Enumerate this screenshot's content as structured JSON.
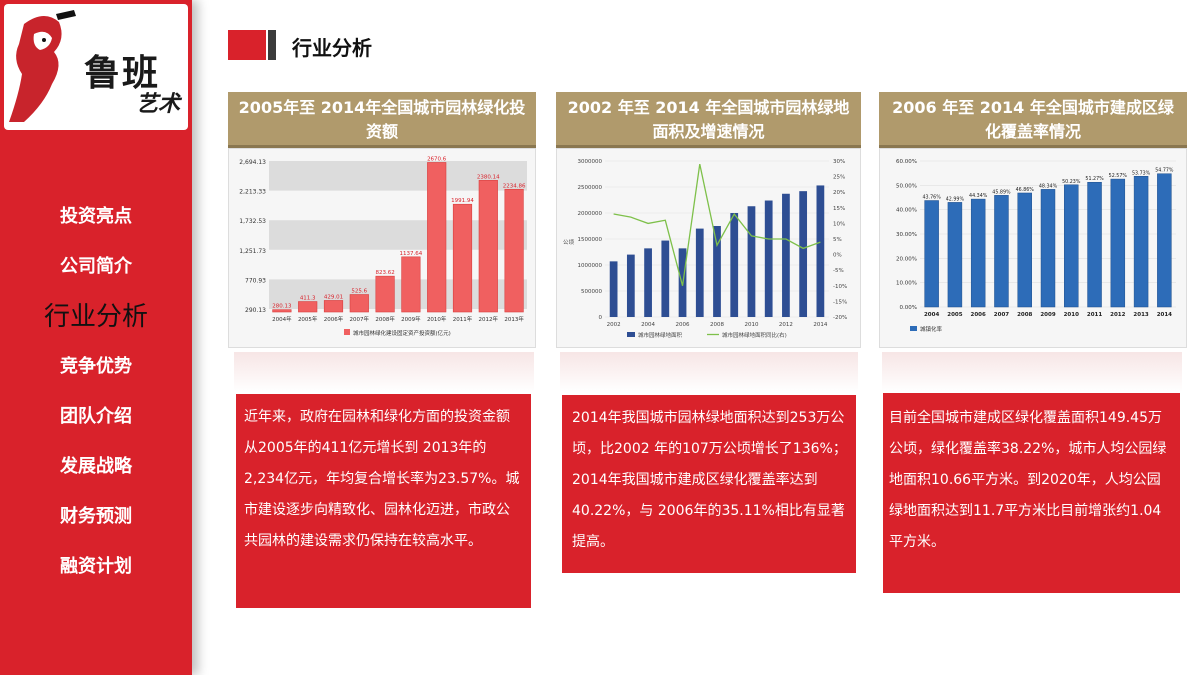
{
  "brand": {
    "logo_main": "鲁班",
    "logo_sub": "艺术"
  },
  "nav": {
    "items": [
      {
        "label": "投资亮点",
        "active": false
      },
      {
        "label": "公司简介",
        "active": false
      },
      {
        "label": "行业分析",
        "active": true
      },
      {
        "label": "竞争优势",
        "active": false
      },
      {
        "label": "团队介绍",
        "active": false
      },
      {
        "label": "发展战略",
        "active": false
      },
      {
        "label": "财务预测",
        "active": false
      },
      {
        "label": "融资计划",
        "active": false
      }
    ]
  },
  "header": {
    "title": "行业分析"
  },
  "colors": {
    "accent": "#d9222b",
    "gold": "#b09a6c",
    "dark": "#3b3b3b"
  },
  "cards": [
    {
      "title_line1": "2005年至 2014年全国城市园林绿化投",
      "title_line2": "资额",
      "description": "近年来，政府在园林和绿化方面的投资金额从2005年的411亿元增长到 2013年的2,234亿元，年均复合增长率为23.57%。城市建设逐步向精致化、园林化迈进，市政公共园林的建设需求仍保持在较高水平。"
    },
    {
      "title_line1": "2002 年至 2014 年全国城市园林绿地",
      "title_line2": "面积及增速情况",
      "description": "2014年我国城市园林绿地面积达到253万公顷，比2002 年的107万公顷增长了136%；2014年我国城市建成区绿化覆盖率达到40.22%，与 2006年的35.11%相比有显著提高。"
    },
    {
      "title_line1": "2006 年至 2014 年全国城市建成区绿",
      "title_line2": "化覆盖率情况",
      "description": "目前全国城市建成区绿化覆盖面积149.45万公顷，绿化覆盖率38.22%，城市人均公园绿地面积10.66平方米。到2020年，人均公园绿地面积达到11.7平方米比目前增张约1.04平方米。"
    }
  ],
  "chart_data": [
    {
      "type": "bar",
      "categories": [
        "2004年",
        "2005年",
        "2006年",
        "2007年",
        "2008年",
        "2009年",
        "2010年",
        "2011年",
        "2012年",
        "2013年"
      ],
      "values": [
        280.13,
        411.3,
        429.01,
        525.6,
        823.62,
        1137.64,
        2670.6,
        1991.94,
        2380.14,
        2234.86
      ],
      "value_labels": [
        "280.13",
        "411.3",
        "429.01",
        "525.6",
        "823.62",
        "1137.64",
        "2670.6",
        "1991.94",
        "2380.14",
        "2234.86"
      ],
      "yticks": [
        "2,694.13",
        "2,213.33",
        "1,732.53",
        "1,251.73",
        "770.93",
        "290.13"
      ],
      "ylim": [
        290.13,
        2694.13
      ],
      "legend": "城市园林绿化建设固定资产投资额(亿元)",
      "color": "#f06060"
    },
    {
      "type": "bar+line",
      "categories": [
        "2002",
        "2003",
        "2004",
        "2005",
        "2006",
        "2007",
        "2008",
        "2009",
        "2010",
        "2011",
        "2012",
        "2013",
        "2014"
      ],
      "x_tick_labels": [
        "2002",
        "2004",
        "2006",
        "2008",
        "2010",
        "2012",
        "2014"
      ],
      "series": [
        {
          "name": "城市园林绿地面积",
          "type": "bar",
          "axis": "left",
          "values": [
            1070000,
            1200000,
            1320000,
            1470000,
            1320000,
            1700000,
            1750000,
            2000000,
            2130000,
            2240000,
            2370000,
            2420000,
            2530000
          ],
          "color": "#2e4e93"
        },
        {
          "name": "城市园林绿地面积同比(右)",
          "type": "line",
          "axis": "right",
          "values": [
            13,
            12,
            10,
            11,
            -10,
            29,
            3,
            13,
            6,
            5,
            5,
            2,
            4
          ],
          "color": "#7ec04a"
        }
      ],
      "left_ticks": [
        "3000000",
        "2500000",
        "2000000",
        "1500000",
        "1000000",
        "500000",
        "0"
      ],
      "right_ticks": [
        "30%",
        "25%",
        "20%",
        "15%",
        "10%",
        "5%",
        "0%",
        "-5%",
        "-10%",
        "-15%",
        "-20%"
      ],
      "ylim_left": [
        0,
        3000000
      ],
      "ylim_right": [
        -20,
        30
      ],
      "ylabel_left": "公顷"
    },
    {
      "type": "bar",
      "categories": [
        "2004",
        "2005",
        "2006",
        "2007",
        "2008",
        "2009",
        "2010",
        "2011",
        "2012",
        "2013",
        "2014"
      ],
      "values": [
        43.76,
        42.99,
        44.34,
        45.89,
        46.86,
        48.34,
        50.23,
        51.27,
        52.57,
        53.73,
        54.77
      ],
      "value_labels": [
        "43.76%",
        "42.99%",
        "44.34%",
        "45.89%",
        "46.86%",
        "48.34%",
        "50.23%",
        "51.27%",
        "52.57%",
        "53.73%",
        "54.77%"
      ],
      "yticks": [
        "60.00%",
        "50.00%",
        "40.00%",
        "30.00%",
        "20.00%",
        "10.00%",
        "0.00%"
      ],
      "ylim": [
        0,
        60
      ],
      "legend": "城镇化率",
      "color": "#2d6cb8"
    }
  ]
}
